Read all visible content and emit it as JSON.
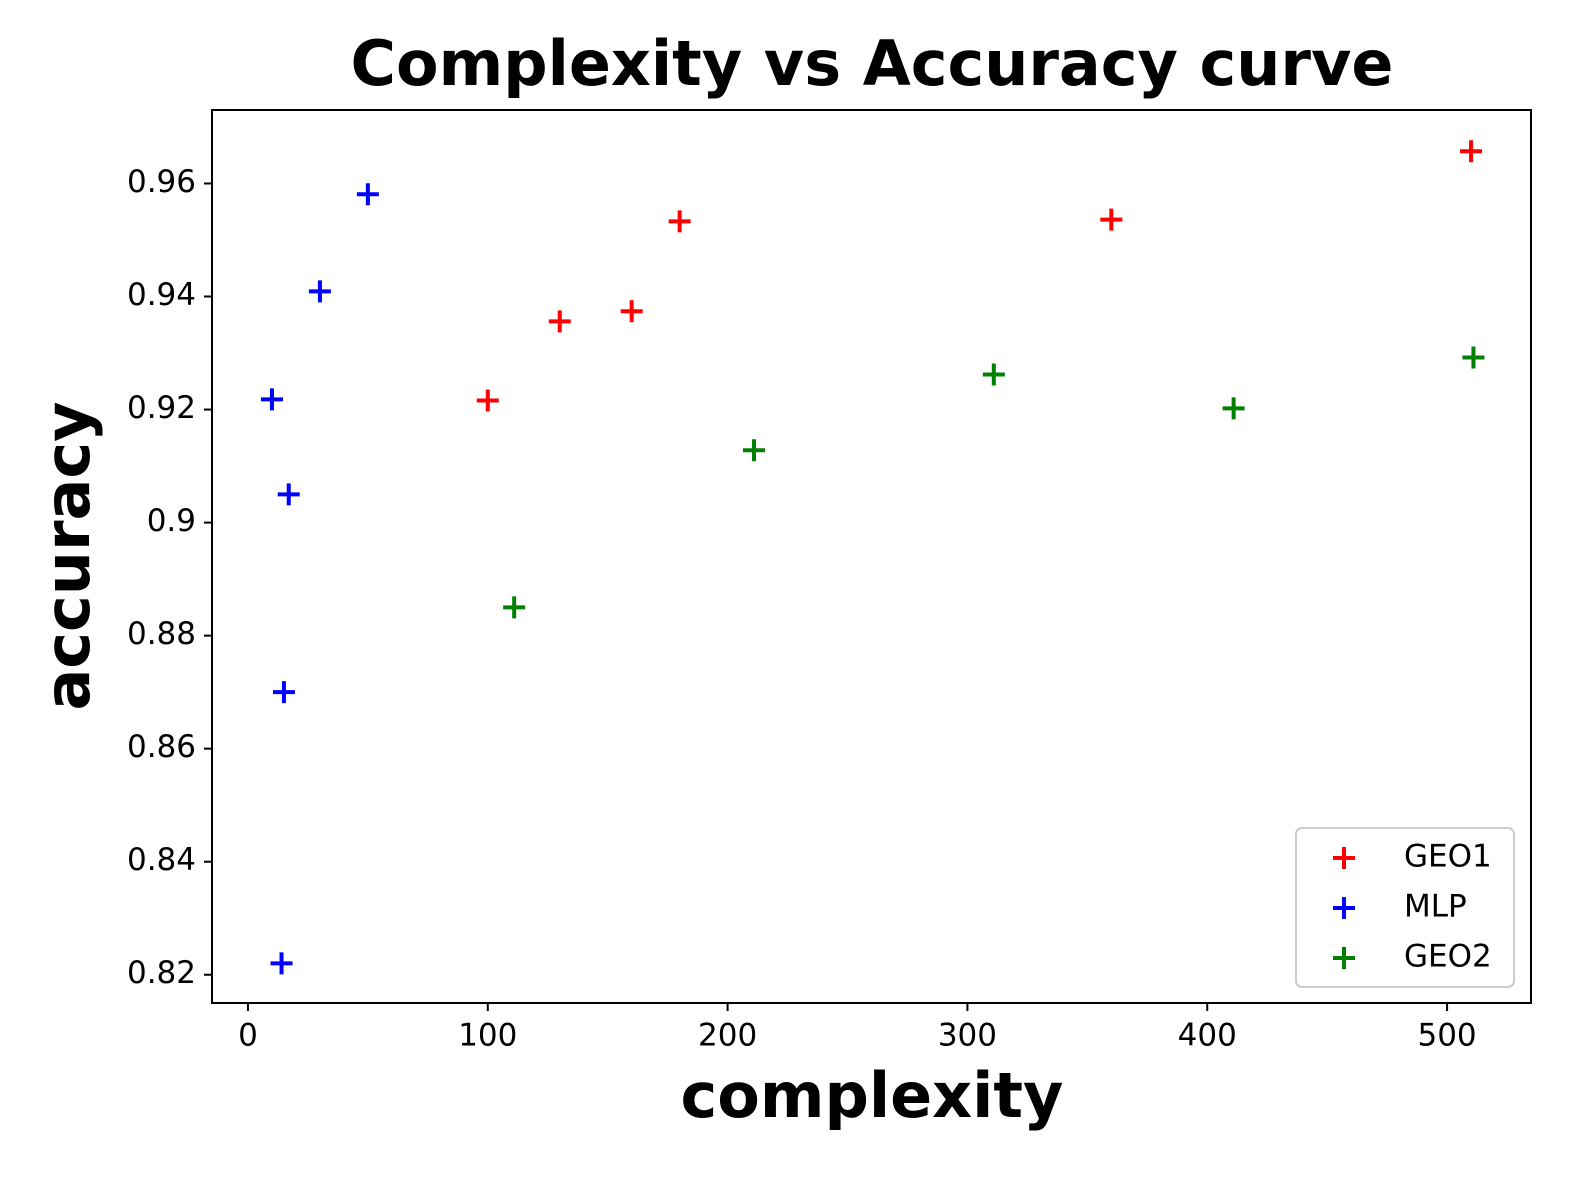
{
  "chart_data": {
    "type": "scatter",
    "title": "Complexity vs Accuracy curve",
    "xlabel": "complexity",
    "ylabel": "accuracy",
    "xlim": [
      -15,
      535
    ],
    "xticks": [
      0,
      100,
      200,
      300,
      400,
      500
    ],
    "ylim": [
      0.815,
      0.973
    ],
    "yticks": [
      0.82,
      0.84,
      0.86,
      0.88,
      0.9,
      0.92,
      0.94,
      0.96
    ],
    "legend": "lower right",
    "series": [
      {
        "name": "GEO1",
        "color": "#ff0000",
        "x": [
          100,
          130,
          160,
          180,
          360,
          510
        ],
        "values": [
          0.9216,
          0.9356,
          0.9374,
          0.9533,
          0.9536,
          0.9657
        ]
      },
      {
        "name": "MLP",
        "color": "#0000ff",
        "x": [
          10,
          17,
          30,
          50,
          15,
          14
        ],
        "values": [
          0.9218,
          0.905,
          0.9409,
          0.9581,
          0.87,
          0.822
        ]
      },
      {
        "name": "GEO2",
        "color": "#008000",
        "x": [
          111,
          211,
          311,
          411,
          511
        ],
        "values": [
          0.885,
          0.9128,
          0.9262,
          0.9202,
          0.9292
        ]
      }
    ]
  }
}
